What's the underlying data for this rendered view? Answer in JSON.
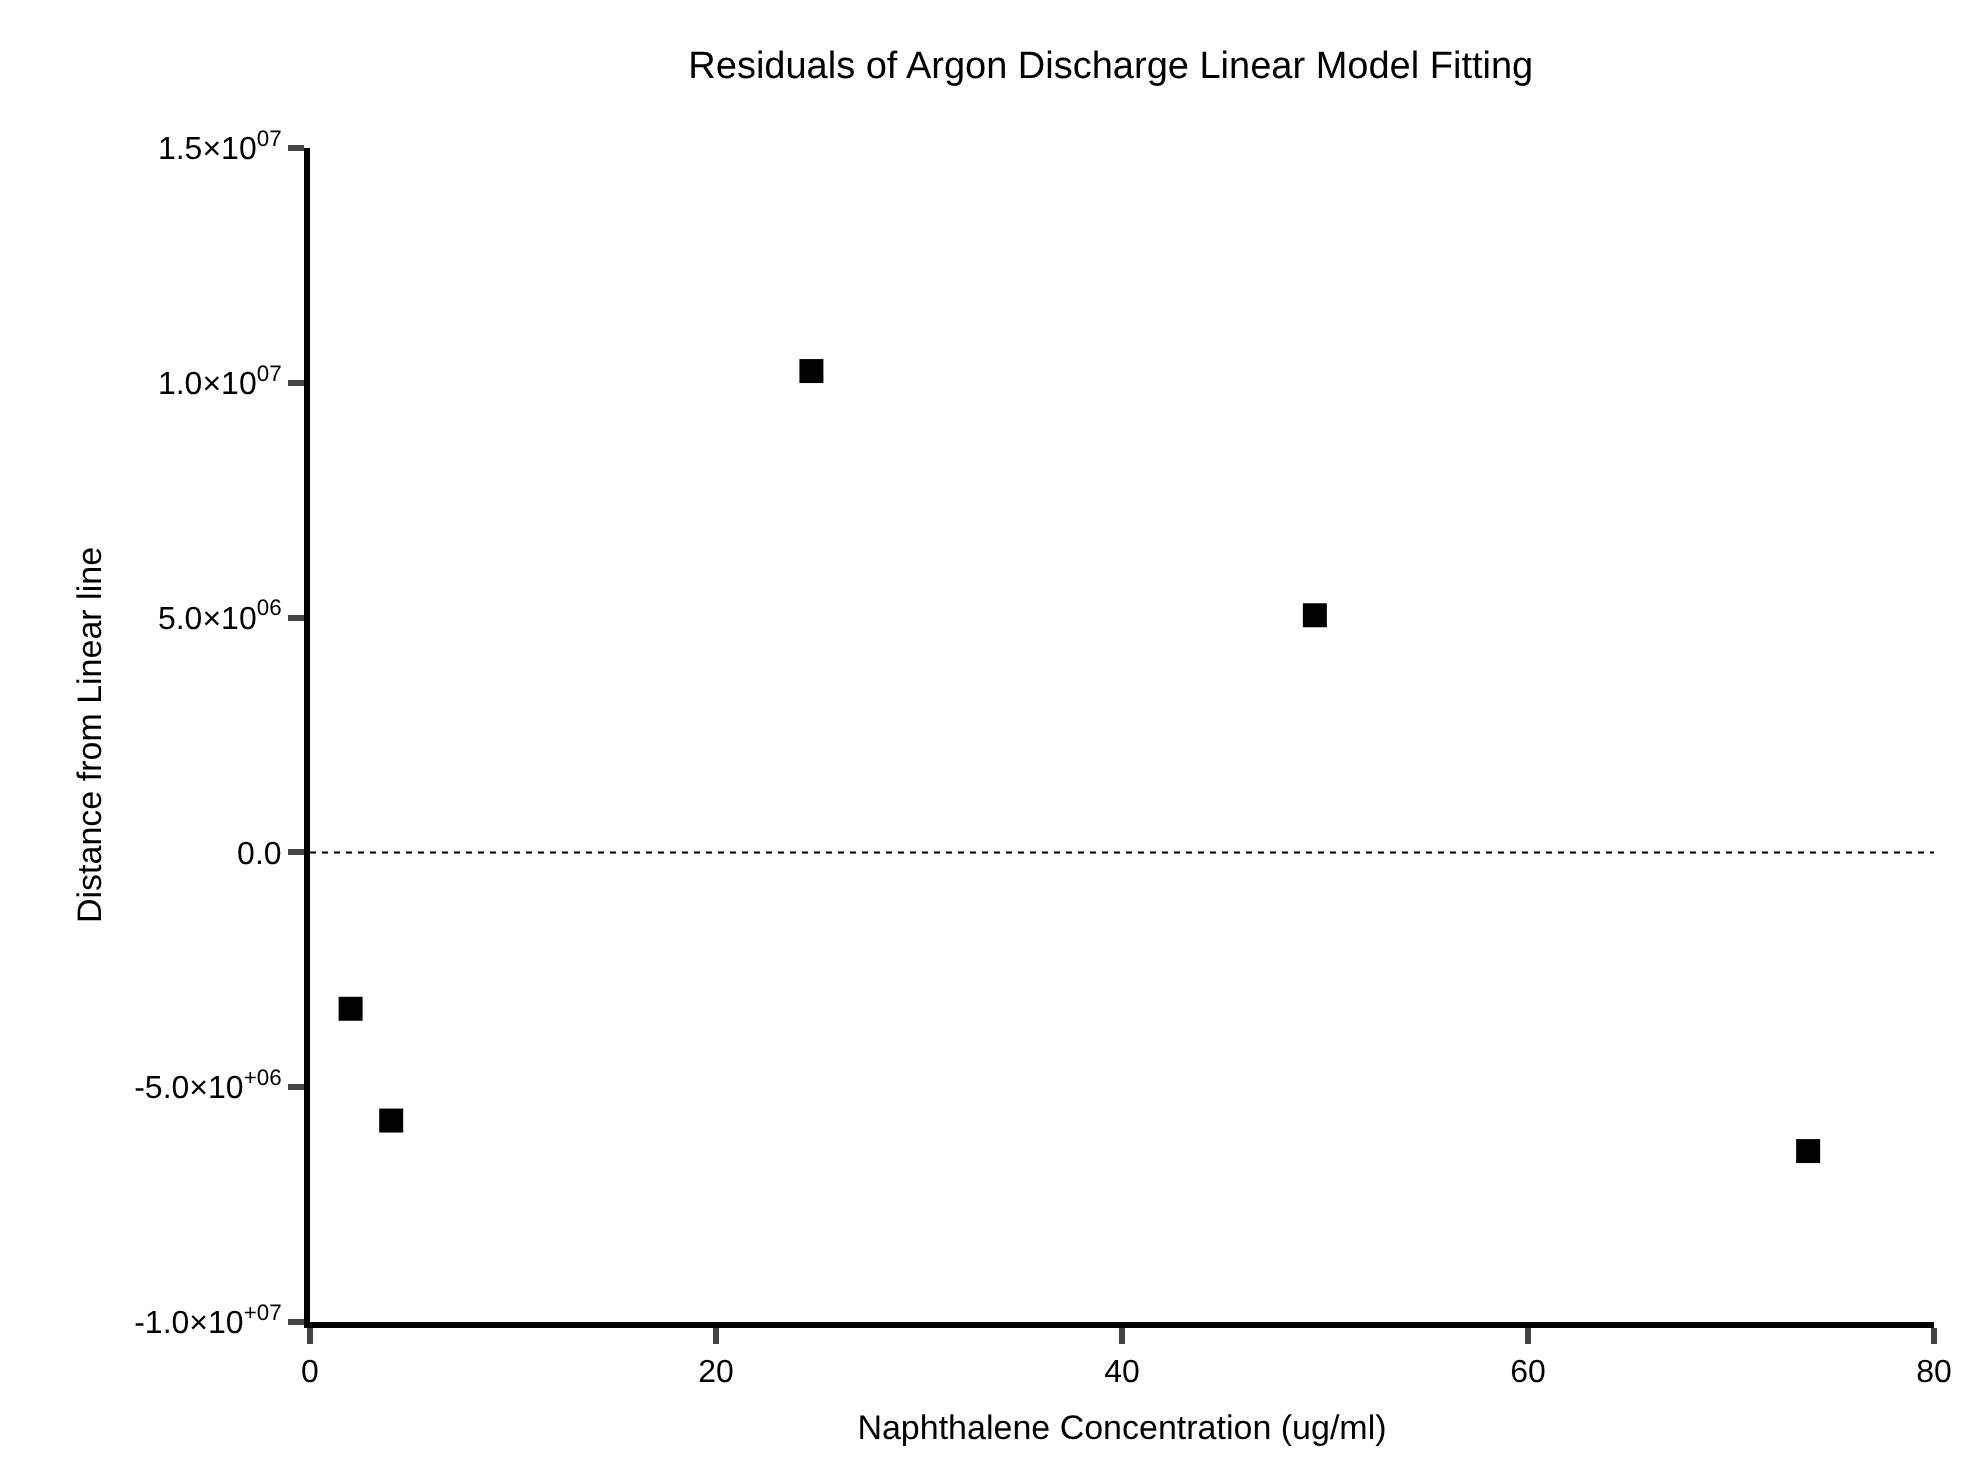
{
  "chart_data": {
    "type": "scatter",
    "title": "Residuals of Argon Discharge Linear Model Fitting",
    "xlabel": "Naphthalene Concentration (ug/ml)",
    "ylabel": "Distance from Linear line",
    "x": [
      2,
      4,
      24.7,
      49.5,
      73.8
    ],
    "series": [
      {
        "color": "#000000",
        "values": [
          -3330000,
          -5710000,
          10250000,
          5050000,
          -6360000
        ]
      }
    ],
    "xlim": [
      0,
      80
    ],
    "xticks": [
      0,
      20,
      40,
      60,
      80
    ],
    "ylim": [
      -10000000,
      15000000
    ],
    "yticks": [
      {
        "value": -10000000,
        "label": "-1.0×10$^{+07}$"
      },
      {
        "value": -5000000,
        "label": "-5.0×10$^{+06}$"
      },
      {
        "value": 0,
        "label": "0.0"
      },
      {
        "value": 5000000,
        "label": "5.0×10$^{06}$"
      },
      {
        "value": 10000000,
        "label": "1.0×10$^{07}$"
      },
      {
        "value": 15000000,
        "label": "1.5×10$^{07}$"
      }
    ],
    "ref_lines": [
      {
        "axis": "y",
        "value": 0,
        "line_style": "dotted",
        "color": "#000000"
      }
    ],
    "marker": "square",
    "grid": false
  }
}
